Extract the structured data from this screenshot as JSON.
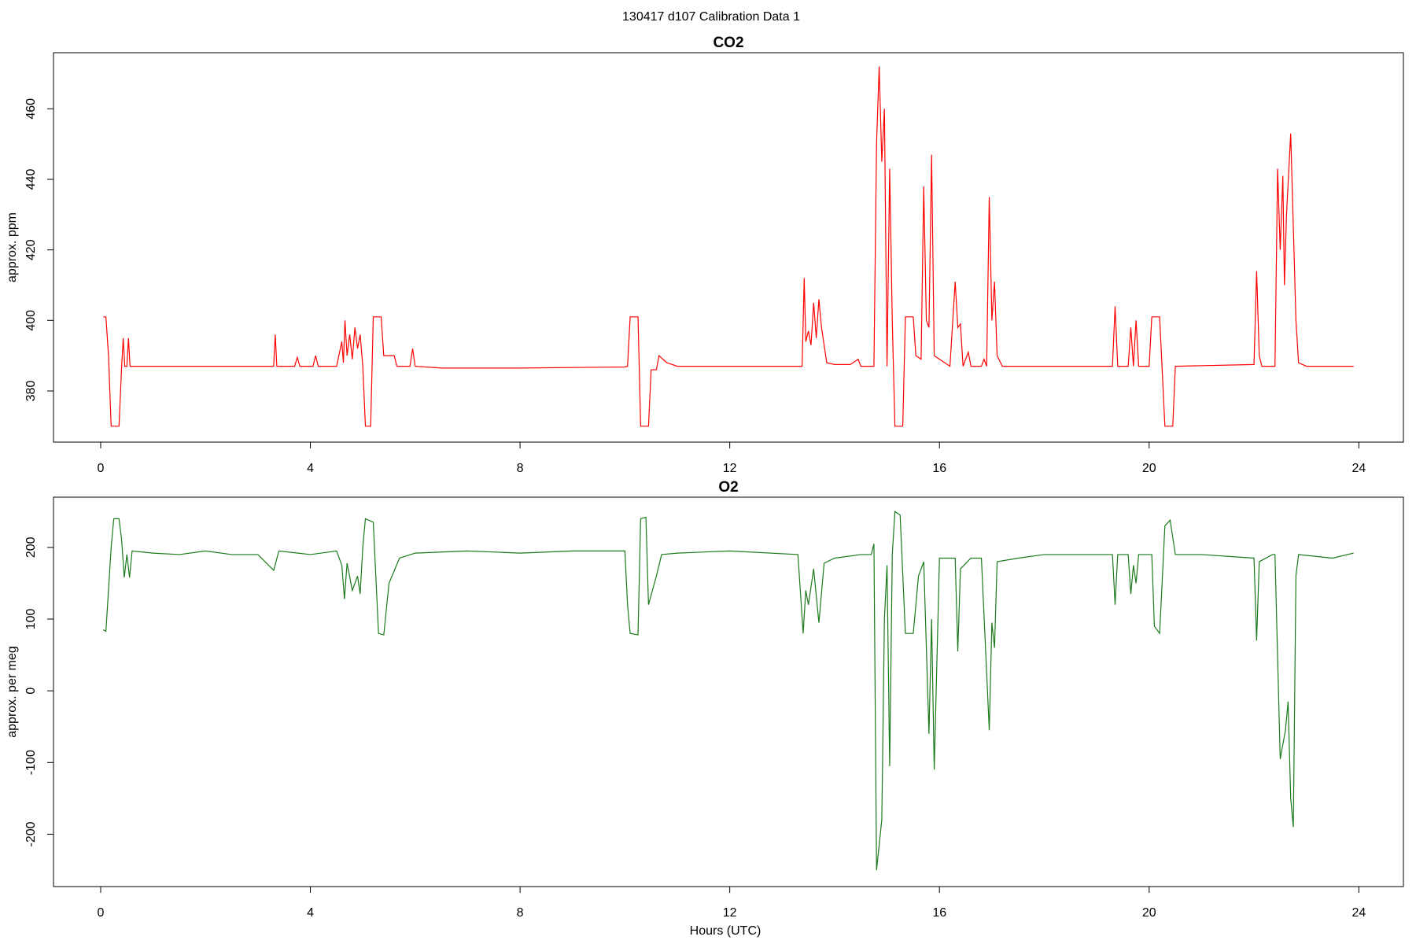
{
  "title": "130417   d107   Calibration Data 1",
  "chart_data": [
    {
      "type": "line",
      "title": "CO2",
      "ylabel": "approx. ppm",
      "color": "#ff0000",
      "xlim": [
        -0.9,
        24.85
      ],
      "xticks": [
        0,
        4,
        8,
        12,
        16,
        20,
        24
      ],
      "ylim": [
        365.5,
        475.9
      ],
      "yticks": [
        380,
        400,
        420,
        440,
        460
      ],
      "x": [
        0.05,
        0.1,
        0.15,
        0.2,
        0.3,
        0.35,
        0.4,
        0.43,
        0.46,
        0.5,
        0.53,
        0.56,
        1,
        2,
        3,
        3.3,
        3.33,
        3.36,
        3.7,
        3.75,
        3.8,
        4.05,
        4.1,
        4.15,
        4.5,
        4.6,
        4.63,
        4.66,
        4.7,
        4.75,
        4.8,
        4.85,
        4.9,
        4.95,
        5.0,
        5.05,
        5.15,
        5.2,
        5.35,
        5.4,
        5.6,
        5.65,
        5.9,
        5.95,
        6.0,
        6.5,
        8,
        10,
        10.05,
        10.1,
        10.25,
        10.3,
        10.45,
        10.5,
        10.6,
        10.65,
        10.8,
        11,
        12,
        13.3,
        13.38,
        13.42,
        13.45,
        13.5,
        13.55,
        13.6,
        13.65,
        13.7,
        13.75,
        13.85,
        14,
        14.3,
        14.45,
        14.5,
        14.75,
        14.8,
        14.85,
        14.9,
        14.95,
        15.0,
        15.05,
        15.1,
        15.15,
        15.3,
        15.35,
        15.5,
        15.55,
        15.65,
        15.7,
        15.75,
        15.8,
        15.85,
        15.9,
        16.2,
        16.3,
        16.35,
        16.4,
        16.45,
        16.55,
        16.6,
        16.8,
        16.85,
        16.9,
        16.95,
        17.0,
        17.05,
        17.1,
        17.2,
        18,
        19.3,
        19.35,
        19.4,
        19.6,
        19.65,
        19.7,
        19.75,
        19.8,
        20.0,
        20.05,
        20.2,
        20.3,
        20.45,
        20.5,
        22,
        22.05,
        22.1,
        22.15,
        22.4,
        22.45,
        22.5,
        22.55,
        22.58,
        22.62,
        22.7,
        22.8,
        22.85,
        23,
        23.9
      ],
      "values": [
        401,
        401,
        390,
        370,
        370,
        370,
        387,
        395,
        387,
        387,
        395,
        387,
        387,
        387,
        387,
        387,
        396,
        387,
        387,
        389.5,
        387,
        387,
        390,
        387,
        387,
        394,
        388,
        400,
        390,
        396,
        389,
        398,
        392,
        396,
        387,
        370,
        370,
        401,
        401,
        390,
        390,
        387,
        387,
        392,
        387,
        386.5,
        386.5,
        386.8,
        387,
        401,
        401,
        370,
        370,
        386,
        386,
        390,
        388,
        387,
        387,
        387,
        387,
        412,
        394,
        397,
        393,
        405,
        395,
        406,
        398,
        388,
        387.5,
        387.5,
        389,
        387,
        387,
        450,
        472,
        445,
        460,
        387,
        443,
        400,
        370,
        370,
        401,
        401,
        390,
        389,
        438,
        400,
        398,
        447,
        390,
        387,
        411,
        398,
        399,
        387,
        391,
        387,
        387,
        389,
        387,
        435,
        400,
        411,
        390,
        387,
        387,
        387,
        404,
        387,
        387,
        398,
        387,
        400,
        387,
        387,
        401,
        401,
        370,
        370,
        387,
        387.5,
        414,
        390,
        387,
        387,
        443,
        420,
        441,
        410,
        430,
        453,
        400,
        388,
        387,
        387
      ]
    },
    {
      "type": "line",
      "title": "O2",
      "ylabel": "approx. per meg",
      "xlabel": "Hours (UTC)",
      "color": "#1a7a1a",
      "xlim": [
        -0.9,
        24.85
      ],
      "xticks": [
        0,
        4,
        8,
        12,
        16,
        20,
        24
      ],
      "ylim": [
        -273,
        270
      ],
      "yticks": [
        -200,
        -100,
        0,
        100,
        200
      ],
      "x": [
        0.05,
        0.1,
        0.2,
        0.25,
        0.35,
        0.4,
        0.45,
        0.5,
        0.55,
        0.6,
        1,
        1.5,
        2,
        2.5,
        3,
        3.3,
        3.4,
        4,
        4.5,
        4.6,
        4.65,
        4.7,
        4.8,
        4.9,
        4.95,
        5.0,
        5.05,
        5.2,
        5.3,
        5.4,
        5.5,
        5.7,
        6,
        7,
        8,
        9,
        10,
        10.05,
        10.1,
        10.25,
        10.3,
        10.4,
        10.45,
        10.6,
        10.7,
        11,
        12,
        13.3,
        13.4,
        13.45,
        13.5,
        13.6,
        13.7,
        13.8,
        14,
        14.5,
        14.7,
        14.75,
        14.8,
        14.9,
        14.95,
        15.0,
        15.05,
        15.1,
        15.15,
        15.25,
        15.35,
        15.5,
        15.6,
        15.7,
        15.8,
        15.85,
        15.9,
        16.0,
        16.3,
        16.35,
        16.4,
        16.6,
        16.8,
        16.95,
        17.0,
        17.05,
        17.1,
        17.5,
        18,
        19,
        19.3,
        19.35,
        19.4,
        19.6,
        19.65,
        19.7,
        19.75,
        19.8,
        20.05,
        20.1,
        20.2,
        20.3,
        20.4,
        20.5,
        21,
        22,
        22.05,
        22.1,
        22.35,
        22.4,
        22.5,
        22.6,
        22.65,
        22.7,
        22.75,
        22.8,
        22.85,
        23.5,
        23.9
      ],
      "values": [
        85,
        83,
        200,
        240,
        240,
        210,
        158,
        190,
        158,
        195,
        192,
        190,
        195,
        190,
        190,
        168,
        195,
        190,
        195,
        175,
        128,
        178,
        140,
        160,
        135,
        200,
        240,
        235,
        80,
        78,
        150,
        185,
        192,
        195,
        192,
        195,
        195,
        120,
        80,
        78,
        240,
        242,
        120,
        160,
        190,
        192,
        195,
        190,
        80,
        140,
        120,
        170,
        95,
        178,
        185,
        190,
        190,
        205,
        -250,
        -180,
        100,
        175,
        -105,
        190,
        250,
        245,
        80,
        80,
        160,
        180,
        -60,
        100,
        -110,
        185,
        185,
        55,
        170,
        185,
        185,
        -55,
        95,
        60,
        180,
        185,
        190,
        190,
        190,
        120,
        190,
        190,
        135,
        175,
        150,
        190,
        190,
        90,
        80,
        230,
        238,
        190,
        190,
        185,
        70,
        180,
        190,
        190,
        -95,
        -55,
        -15,
        -150,
        -190,
        160,
        190,
        185,
        192
      ]
    }
  ]
}
